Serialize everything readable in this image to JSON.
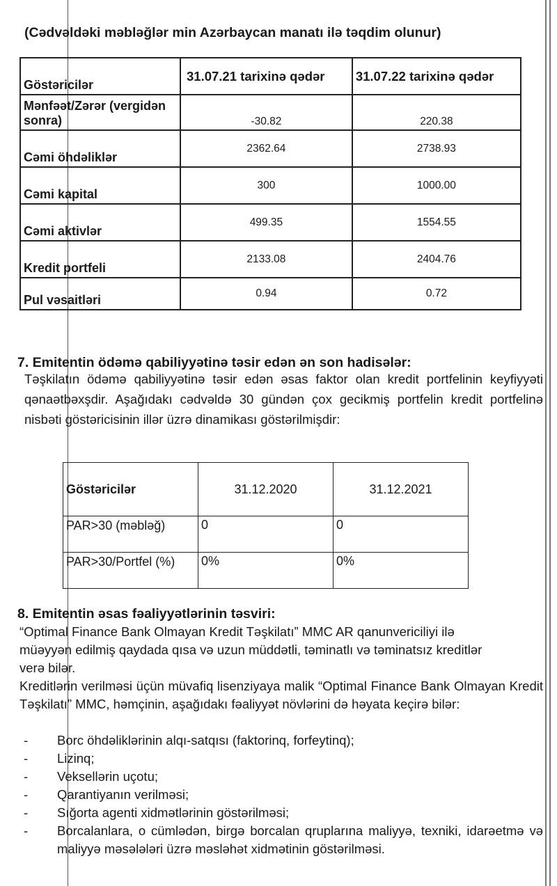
{
  "note": "(Cədvəldəki məbləğlər min Azərbaycan manatı ilə təqdim olunur)",
  "table1": {
    "headers": [
      "Göstəricilər",
      "31.07.21 tarixinə qədər",
      "31.07.22 tarixinə qədər"
    ],
    "rows": [
      {
        "label": "Mənfəət/Zərər (vergidən sonra)",
        "v1": "-30.82",
        "v2": "220.38"
      },
      {
        "label": "Cəmi öhdəliklər",
        "v1": "2362.64",
        "v2": "2738.93"
      },
      {
        "label": "Cəmi kapital",
        "v1": "300",
        "v2": "1000.00"
      },
      {
        "label": "Cəmi aktivlər",
        "v1": "499.35",
        "v2": "1554.55"
      },
      {
        "label": "Kredit portfeli",
        "v1": "2133.08",
        "v2": "2404.76"
      },
      {
        "label": "Pul vəsaitləri",
        "v1": "0.94",
        "v2": "0.72"
      }
    ]
  },
  "section7": {
    "heading": "7.  Emitentin ödəmə qabiliyyətinə təsir edən ən son hadisələr:",
    "paragraph": "Təşkilatın ödəmə qabiliyyətinə təsir edən əsas faktor olan kredit portfelinin keyfiyyəti qənaətbəxşdir. Aşağıdakı cədvəldə 30 gündən çox gecikmiş portfelin kredit portfelinə nisbəti göstəricisinin illər üzrə dinamikası göstərilmişdir:"
  },
  "table2": {
    "headers": [
      "Göstəricilər",
      "31.12.2020",
      "31.12.2021"
    ],
    "rows": [
      {
        "label": "PAR>30 (məbləğ)",
        "v1": "0",
        "v2": "0"
      },
      {
        "label": "PAR>30/Portfel (%)",
        "v1": "0%",
        "v2": "0%"
      }
    ]
  },
  "section8": {
    "heading": "8. Emitentin əsas fəaliyyətlərinin təsviri:",
    "paragraph1": "“Optimal Finance Bank Olmayan Kredit Təşkilatı” MMC AR qanunvericiliyi ilə müəyyən edilmiş qaydada qısa və uzun müddətli, təminatlı və təminatsız kreditlər verə bilər.",
    "paragraph2": "Kreditlərin verilməsi üçün müvafiq lisenziyaya malik “Optimal Finance Bank Olmayan Kredit Təşkilatı” MMC,  həmçinin, aşağıdakı fəaliyyət növlərini də həyata keçirə bilər:",
    "items": [
      "Borc öhdəliklərinin alqı-satqısı (faktorinq, forfeytinq);",
      "Lizinq;",
      "Veksellərin uçotu;",
      "Qarantiyanın verilməsi;",
      "Sığorta agenti xidmətlərinin göstərilməsi;",
      "Borcalanlara, o cümlədən, birgə borcalan qruplarına maliyyə, texniki, idarəetmə və maliyyə məsələləri üzrə məsləhət xidmətinin göstərilməsi."
    ]
  }
}
